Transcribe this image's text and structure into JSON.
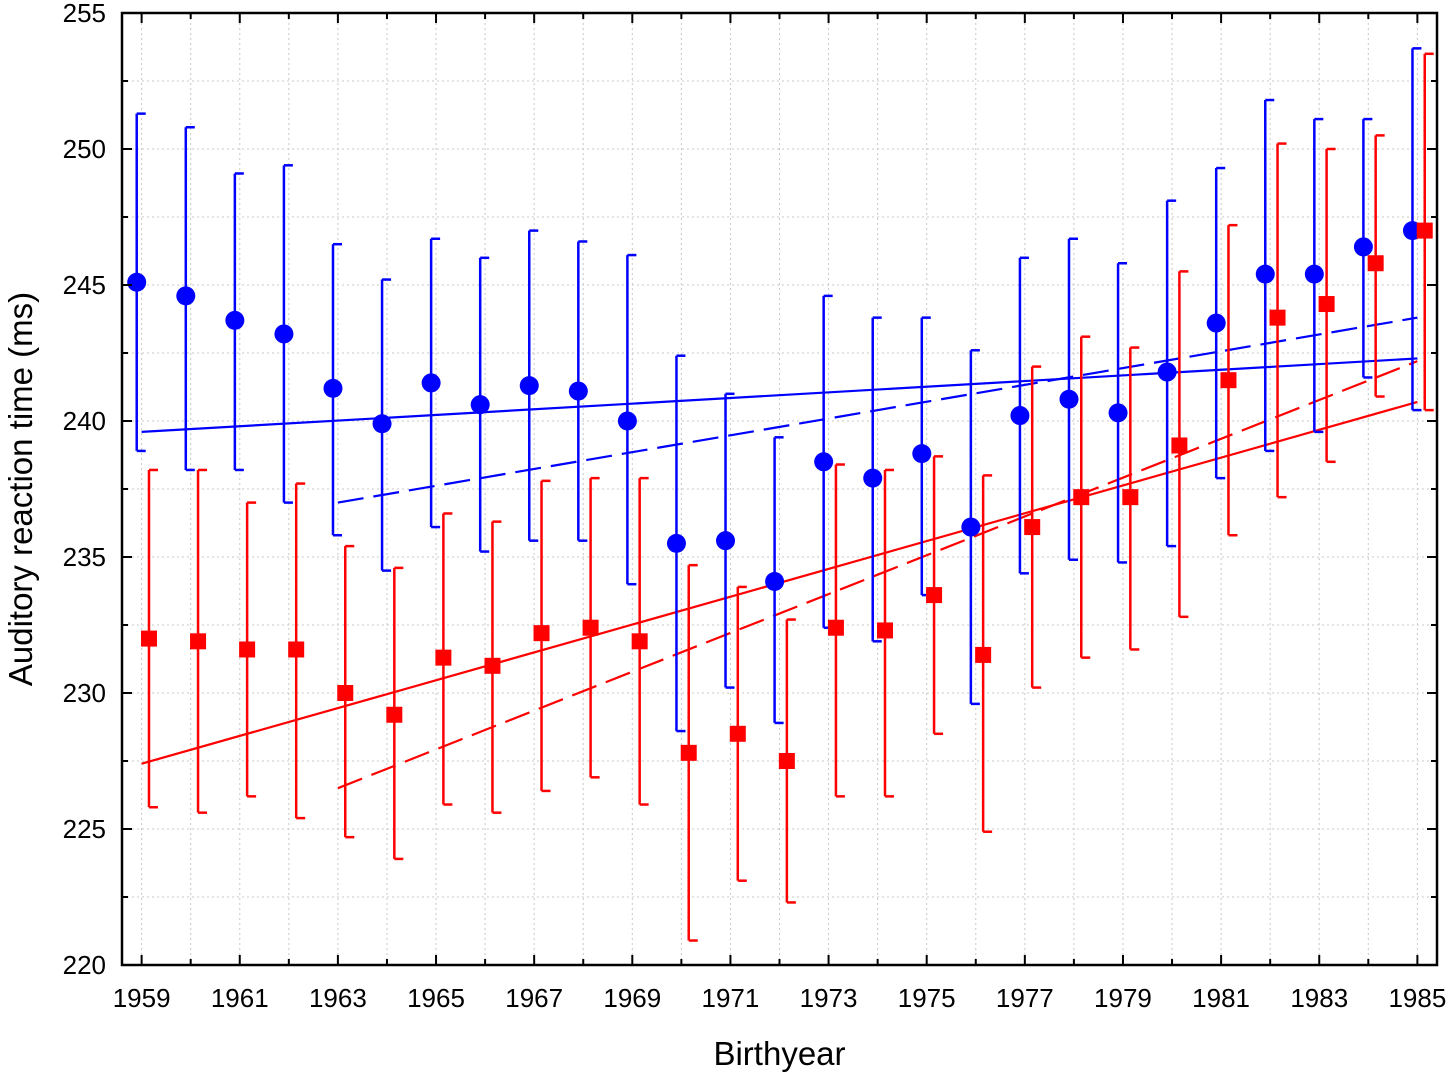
{
  "chart_data": {
    "type": "scatter",
    "xlabel": "Birthyear",
    "ylabel": "Auditory reaction time (ms)",
    "xlim": [
      1958.6,
      1985.4
    ],
    "ylim": [
      220,
      255
    ],
    "x_ticks": [
      1959,
      1961,
      1963,
      1965,
      1967,
      1969,
      1971,
      1973,
      1975,
      1977,
      1979,
      1981,
      1983,
      1985
    ],
    "y_ticks": [
      220,
      225,
      230,
      235,
      240,
      245,
      250,
      255
    ],
    "grid": true,
    "series": [
      {
        "marker": "circle",
        "color": "#0000ff",
        "x_offset": -0.1,
        "x": [
          1959,
          1960,
          1961,
          1962,
          1963,
          1964,
          1965,
          1966,
          1967,
          1968,
          1969,
          1970,
          1971,
          1972,
          1973,
          1974,
          1975,
          1976,
          1977,
          1978,
          1979,
          1980,
          1981,
          1982,
          1983,
          1984,
          1985
        ],
        "y": [
          245.1,
          244.6,
          243.7,
          243.2,
          241.2,
          239.9,
          241.4,
          240.6,
          241.3,
          241.1,
          240.0,
          235.5,
          235.6,
          234.1,
          238.5,
          237.9,
          238.8,
          236.1,
          240.2,
          240.8,
          240.3,
          241.8,
          243.6,
          245.4,
          245.4,
          246.4,
          247.0
        ],
        "err_high": [
          251.3,
          250.8,
          249.1,
          249.4,
          246.5,
          245.2,
          246.7,
          246.0,
          247.0,
          246.6,
          246.1,
          242.4,
          241.0,
          239.4,
          244.6,
          243.8,
          243.8,
          242.6,
          246.0,
          246.7,
          245.8,
          248.1,
          249.3,
          251.8,
          251.1,
          251.1,
          253.7
        ],
        "err_low": [
          238.9,
          238.2,
          238.2,
          237.0,
          235.8,
          234.5,
          236.1,
          235.2,
          235.6,
          235.6,
          234.0,
          228.6,
          230.2,
          228.9,
          232.4,
          231.9,
          233.6,
          229.6,
          234.4,
          234.9,
          234.8,
          235.4,
          237.9,
          238.9,
          239.6,
          241.6,
          240.4
        ],
        "trend_solid": {
          "x": [
            1959,
            1985
          ],
          "y": [
            239.6,
            242.3
          ]
        },
        "trend_dashed": {
          "x": [
            1963,
            1985
          ],
          "y": [
            237.0,
            243.8
          ]
        }
      },
      {
        "marker": "square",
        "color": "#ff0000",
        "x_offset": 0.15,
        "x": [
          1959,
          1960,
          1961,
          1962,
          1963,
          1964,
          1965,
          1966,
          1967,
          1968,
          1969,
          1970,
          1971,
          1972,
          1973,
          1974,
          1975,
          1976,
          1977,
          1978,
          1979,
          1980,
          1981,
          1982,
          1983,
          1984,
          1985
        ],
        "y": [
          232.0,
          231.9,
          231.6,
          231.6,
          230.0,
          229.2,
          231.3,
          231.0,
          232.2,
          232.4,
          231.9,
          227.8,
          228.5,
          227.5,
          232.4,
          232.3,
          233.6,
          231.4,
          236.1,
          237.2,
          237.2,
          239.1,
          241.5,
          243.8,
          244.3,
          245.8,
          247.0
        ],
        "err_high": [
          238.2,
          238.2,
          237.0,
          237.7,
          235.4,
          234.6,
          236.6,
          236.3,
          237.8,
          237.9,
          237.9,
          234.7,
          233.9,
          232.7,
          238.4,
          238.2,
          238.7,
          238.0,
          242.0,
          243.1,
          242.7,
          245.5,
          247.2,
          250.2,
          250.0,
          250.5,
          253.5
        ],
        "err_low": [
          225.8,
          225.6,
          226.2,
          225.4,
          224.7,
          223.9,
          225.9,
          225.6,
          226.4,
          226.9,
          225.9,
          220.9,
          223.1,
          222.3,
          226.2,
          226.2,
          228.5,
          224.9,
          230.2,
          231.3,
          231.6,
          232.8,
          235.8,
          237.2,
          238.5,
          240.9,
          240.4
        ],
        "trend_solid": {
          "x": [
            1959,
            1985
          ],
          "y": [
            227.4,
            240.7
          ]
        },
        "trend_dashed": {
          "x": [
            1963,
            1985
          ],
          "y": [
            226.5,
            242.2
          ]
        }
      }
    ]
  }
}
